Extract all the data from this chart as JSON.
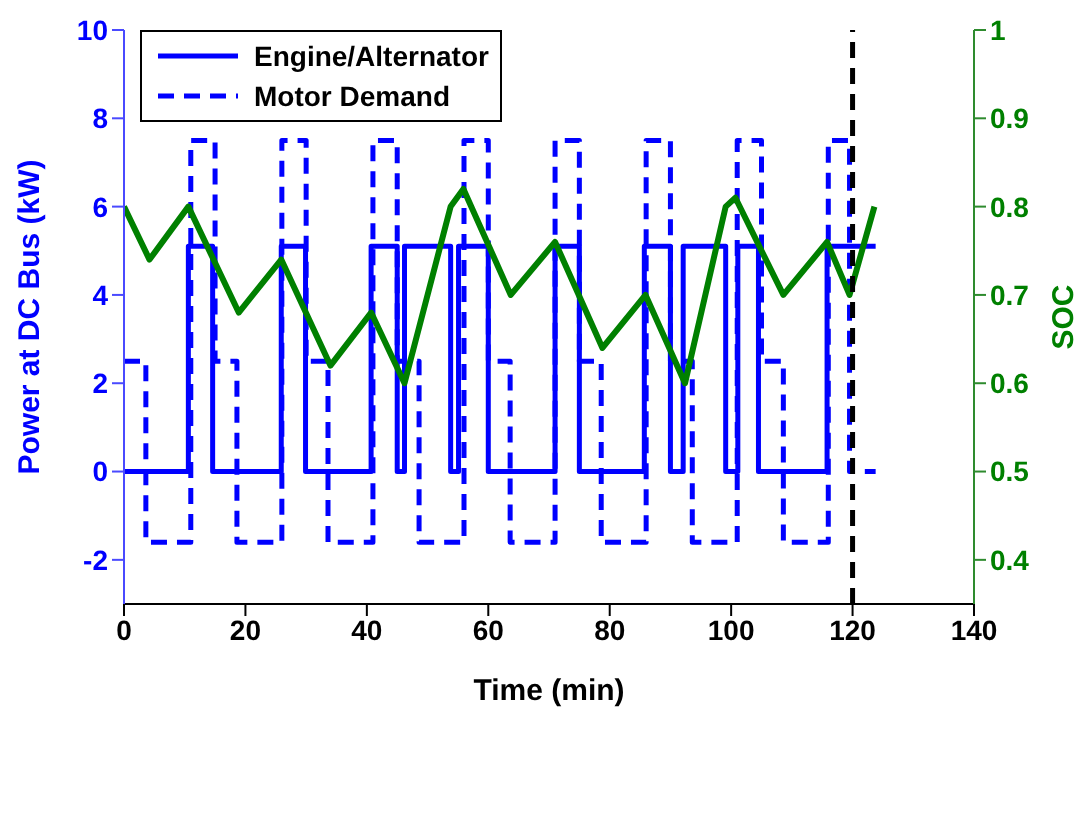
{
  "chart_data": {
    "type": "line",
    "xlabel": "Time (min)",
    "ylabel": "Power at DC Bus (kW)",
    "y2label": "SOC",
    "xlim": [
      0,
      140
    ],
    "xticks": [
      0,
      20,
      40,
      60,
      80,
      100,
      120,
      140
    ],
    "ylim": [
      -3,
      10
    ],
    "yticks": [
      -2,
      0,
      2,
      4,
      6,
      8,
      10
    ],
    "y2lim": [
      0.35,
      1
    ],
    "y2ticks": [
      0.4,
      0.5,
      0.6,
      0.7,
      0.8,
      0.9,
      1
    ],
    "legend": "top left",
    "grid": false,
    "marker": "none",
    "series": [
      {
        "name": "Engine/Alternator",
        "type": "step",
        "color": "#0000ff",
        "line_style": "solid",
        "x": [
          0,
          10.6,
          14.6,
          25.9,
          29.9,
          40.7,
          45,
          46.2,
          53.8,
          55.1,
          60,
          71,
          75,
          85.7,
          90,
          92.1,
          99.1,
          101.1,
          104.5,
          115.8,
          123.8
        ],
        "values": [
          0,
          5.1,
          0,
          5.1,
          0,
          5.1,
          0,
          5.1,
          0,
          5.1,
          0,
          5.1,
          0,
          5.1,
          0,
          5.1,
          0,
          5.1,
          0,
          5.1,
          5.1
        ]
      },
      {
        "name": "Motor Demand",
        "type": "step",
        "color": "#0000ff",
        "line_style": "dashed",
        "x": [
          0,
          3.6,
          11,
          15,
          18.6,
          26,
          30,
          33.6,
          41,
          45,
          48.6,
          56,
          60,
          63.6,
          71,
          75,
          78.6,
          86,
          90,
          93.6,
          101,
          105,
          108.6,
          116,
          119.5,
          123.8
        ],
        "values": [
          2.5,
          -1.6,
          7.5,
          2.5,
          -1.6,
          7.5,
          2.5,
          -1.6,
          7.5,
          2.5,
          -1.6,
          7.5,
          2.5,
          -1.6,
          7.5,
          2.5,
          -1.6,
          7.5,
          2.5,
          -1.6,
          7.5,
          2.5,
          -1.6,
          7.5,
          0,
          0
        ]
      },
      {
        "axis": "y2",
        "color": "#008000",
        "line_style": "solid",
        "x": [
          0,
          4.2,
          10.6,
          18.9,
          25.9,
          34,
          40.7,
          46.2,
          53.8,
          55.9,
          63.7,
          71,
          78.8,
          85.9,
          92.4,
          99.1,
          100.7,
          108.6,
          115.8,
          119.5,
          123.6
        ],
        "values": [
          0.8,
          0.74,
          0.8,
          0.68,
          0.74,
          0.62,
          0.68,
          0.6,
          0.8,
          0.82,
          0.7,
          0.76,
          0.64,
          0.7,
          0.6,
          0.8,
          0.81,
          0.7,
          0.76,
          0.7,
          0.8
        ]
      }
    ],
    "ref_lines": [
      {
        "axis": "x",
        "value": 120,
        "color": "#000000",
        "line_style": "dashed"
      }
    ]
  }
}
